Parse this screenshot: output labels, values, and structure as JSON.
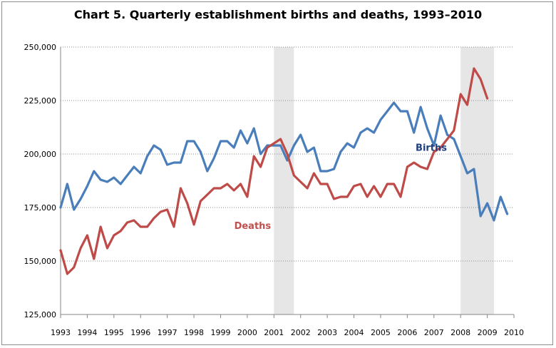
{
  "chart_data": {
    "type": "line",
    "title": "Chart 5. Quarterly establishment births and deaths, 1993–2010",
    "xlabel": "",
    "ylabel": "",
    "ylim": [
      125000,
      250000
    ],
    "yticks": [
      125000,
      150000,
      175000,
      200000,
      225000,
      250000
    ],
    "ytick_labels": [
      "125,000",
      "150,000",
      "175,000",
      "200,000",
      "225,000",
      "250,000"
    ],
    "x_start": 1993,
    "x_end": 2010,
    "xtick_labels": [
      "1993",
      "1994",
      "1995",
      "1996",
      "1997",
      "1998",
      "1999",
      "2000",
      "2001",
      "2002",
      "2003",
      "2004",
      "2005",
      "2006",
      "2007",
      "2008",
      "2009",
      "2010"
    ],
    "grid": true,
    "recession_shading": [
      {
        "start": 2001.0,
        "end": 2001.75
      },
      {
        "start": 2008.0,
        "end": 2009.25
      }
    ],
    "series": [
      {
        "name": "Births",
        "color": "#4a7ebb",
        "start": 1993.0,
        "values": [
          175000,
          186000,
          174000,
          179000,
          185000,
          192000,
          188000,
          187000,
          189000,
          186000,
          190000,
          194000,
          191000,
          199000,
          204000,
          202000,
          195000,
          196000,
          196000,
          206000,
          206000,
          201000,
          192000,
          198000,
          206000,
          206000,
          203000,
          211000,
          205000,
          212000,
          200000,
          204000,
          204000,
          204000,
          197000,
          204000,
          209000,
          201000,
          203000,
          192000,
          192000,
          193000,
          201000,
          205000,
          203000,
          210000,
          212000,
          210000,
          216000,
          220000,
          224000,
          220000,
          220000,
          210000,
          222000,
          212000,
          204000,
          218000,
          209000,
          207000,
          199000,
          191000,
          193000,
          171000,
          177000,
          169000,
          180000,
          172000
        ]
      },
      {
        "name": "Deaths",
        "color": "#be4b48",
        "start": 1993.0,
        "values": [
          155000,
          144000,
          147000,
          156000,
          162000,
          151000,
          166000,
          156000,
          162000,
          164000,
          168000,
          169000,
          166000,
          166000,
          170000,
          173000,
          174000,
          166000,
          184000,
          177000,
          167000,
          178000,
          181000,
          184000,
          184000,
          186000,
          183000,
          186000,
          180000,
          199000,
          194000,
          203000,
          205000,
          207000,
          200000,
          190000,
          187000,
          184000,
          191000,
          186000,
          186000,
          179000,
          180000,
          180000,
          185000,
          186000,
          180000,
          185000,
          180000,
          186000,
          186000,
          180000,
          194000,
          196000,
          194000,
          193000,
          201000,
          203000,
          207000,
          211000,
          228000,
          223000,
          240000,
          235000,
          226000
        ]
      }
    ],
    "annotations": [
      {
        "text": "Births",
        "x": 2006.9,
        "y": 201500,
        "color": "#1f3f7f"
      },
      {
        "text": "Deaths",
        "x": 2000.2,
        "y": 165000,
        "color": "#c0504d"
      }
    ]
  }
}
